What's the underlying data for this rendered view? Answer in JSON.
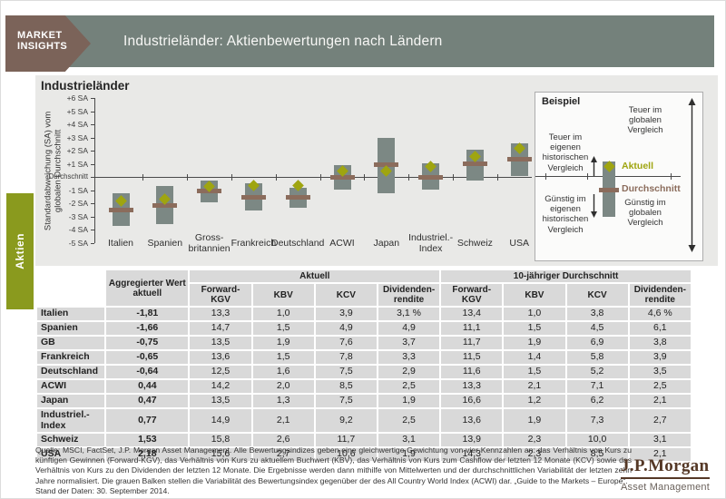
{
  "header": {
    "logo_line1": "MARKET",
    "logo_line2": "INSIGHTS",
    "title": "Industrieländer: Aktienbewertungen nach Ländern"
  },
  "sidebar": {
    "tab_label": "Aktien"
  },
  "chart_data": [
    {
      "type": "bar",
      "subtype": "floating-range-bars-with-markers",
      "title": "Industrieländer",
      "ylabel": "Standardabweichung (SA) vom\nglobalen Durchschnitt",
      "ylim": [
        -5,
        6
      ],
      "grid": false,
      "legend_position": "right (Beispiel box)",
      "y_ticks": [
        {
          "label": "+6 SA",
          "value": 6
        },
        {
          "label": "+5 SA",
          "value": 5
        },
        {
          "label": "+4 SA",
          "value": 4
        },
        {
          "label": "+3 SA",
          "value": 3
        },
        {
          "label": "+2 SA",
          "value": 2
        },
        {
          "label": "+1 SA",
          "value": 1
        },
        {
          "label": "Durchschnitt",
          "value": 0
        },
        {
          "label": "-1 SA",
          "value": -1
        },
        {
          "label": "-2 SA",
          "value": -2
        },
        {
          "label": "-3 SA",
          "value": -3
        },
        {
          "label": "-4 SA",
          "value": -4
        },
        {
          "label": "-5 SA",
          "value": -5
        }
      ],
      "categories": [
        "Italien",
        "Spanien",
        "Gross-\nbritannien",
        "Frankreich",
        "Deutschland",
        "ACWI",
        "Japan",
        "Industriel.-\nIndex",
        "Schweiz",
        "USA"
      ],
      "series": [
        {
          "name": "Variabilität (grauer Balken)",
          "type": "range",
          "values": [
            [
              -3.7,
              -1.25
            ],
            [
              -3.6,
              -0.7
            ],
            [
              -1.95,
              -0.25
            ],
            [
              -2.55,
              -0.5
            ],
            [
              -2.35,
              -0.85
            ],
            [
              -1.0,
              0.9
            ],
            [
              -1.25,
              3.0
            ],
            [
              -1.0,
              1.05
            ],
            [
              -0.3,
              2.1
            ],
            [
              0.1,
              2.55
            ]
          ]
        },
        {
          "name": "Durchschnitt",
          "type": "marker-line",
          "values": [
            -2.5,
            -2.15,
            -1.05,
            -1.55,
            -1.55,
            0.0,
            0.9,
            0.0,
            1.0,
            1.35
          ]
        },
        {
          "name": "Aktuell",
          "type": "marker-diamond",
          "values": [
            -1.81,
            -1.66,
            -0.75,
            -0.65,
            -0.64,
            0.44,
            0.47,
            0.77,
            1.53,
            2.18
          ]
        }
      ]
    },
    {
      "type": "table",
      "agg_header": "Aggregierter Wert\naktuell",
      "group_headers": [
        "Aktuell",
        "10-jähriger Durchschnitt"
      ],
      "sub_headers": [
        "Forward-KGV",
        "KBV",
        "KCV",
        "Dividenden-\nrendite",
        "Forward-KGV",
        "KBV",
        "KCV",
        "Dividenden-\nrendite"
      ],
      "rows": [
        {
          "name": "Italien",
          "agg": "-1,81",
          "values": [
            "13,3",
            "1,0",
            "3,9",
            "3,1 %",
            "13,4",
            "1,0",
            "3,8",
            "4,6 %"
          ]
        },
        {
          "name": "Spanien",
          "agg": "-1,66",
          "values": [
            "14,7",
            "1,5",
            "4,9",
            "4,9",
            "11,1",
            "1,5",
            "4,5",
            "6,1"
          ]
        },
        {
          "name": "GB",
          "agg": "-0,75",
          "values": [
            "13,5",
            "1,9",
            "7,6",
            "3,7",
            "11,7",
            "1,9",
            "6,9",
            "3,8"
          ]
        },
        {
          "name": "Frankreich",
          "agg": "-0,65",
          "values": [
            "13,6",
            "1,5",
            "7,8",
            "3,3",
            "11,5",
            "1,4",
            "5,8",
            "3,9"
          ]
        },
        {
          "name": "Deutschland",
          "agg": "-0,64",
          "values": [
            "12,5",
            "1,6",
            "7,5",
            "2,9",
            "11,6",
            "1,5",
            "5,2",
            "3,5"
          ]
        },
        {
          "name": "ACWI",
          "agg": "0,44",
          "values": [
            "14,2",
            "2,0",
            "8,5",
            "2,5",
            "13,3",
            "2,1",
            "7,1",
            "2,5"
          ]
        },
        {
          "name": "Japan",
          "agg": "0,47",
          "values": [
            "13,5",
            "1,3",
            "7,5",
            "1,9",
            "16,6",
            "1,2",
            "6,2",
            "2,1"
          ]
        },
        {
          "name": "Industriel.-\nIndex",
          "agg": "0,77",
          "values": [
            "14,9",
            "2,1",
            "9,2",
            "2,5",
            "13,6",
            "1,9",
            "7,3",
            "2,7"
          ]
        },
        {
          "name": "Schweiz",
          "agg": "1,53",
          "values": [
            "15,8",
            "2,6",
            "11,7",
            "3,1",
            "13,9",
            "2,3",
            "10,0",
            "3,1"
          ]
        },
        {
          "name": "USA",
          "agg": "2,18",
          "values": [
            "15,6",
            "2,7",
            "10,6",
            "1,9",
            "14,3",
            "2,3",
            "8,5",
            "2,1"
          ]
        }
      ]
    }
  ],
  "beispiel": {
    "title": "Beispiel",
    "aktuell": "Aktuell",
    "durchschnitt": "Durchschnitt",
    "teuer_eigen": "Teuer im\neigenen\nhistorischen\nVergleich",
    "guenstig_eigen": "Günstig im\neigenen\nhistorischen\nVergleich",
    "teuer_global": "Teuer im\nglobalen\nVergleich",
    "guenstig_global": "Günstig im\nglobalen\nVergleich"
  },
  "footer": {
    "source": "Quelle: MSCI, FactSet, J.P. Morgan Asset Management.  Alle Bewertungsindizes geben eine gleichwertige Gewichtung von vier Kennzahlen an: das Verhältnis von Kurs zu künftigen Gewinnen (Forward-KGV), das Verhältnis von Kurs zu aktuellem Buchwert (KBV), das Verhältnis von Kurs zum Cashflow der letzten 12 Monate (KCV) sowie das Verhältnis von Kurs zu den Dividenden der letzten 12 Monate.  Die Ergebnisse werden dann mithilfe von Mittelwerten und der durchschnittlichen Variabilität der letzten zehn Jahre normalisiert.  Die grauen Balken stellen die Variabilität des Bewertungsindex gegenüber der des All Country World Index (ACWI) dar. „Guide to the Markets – Europe“.",
    "date_note": "Stand der Daten: 30. September 2014.",
    "logo_word": "J.P.Morgan",
    "logo_sub": "Asset Management"
  },
  "colors": {
    "c-header": "#74817b",
    "c-pennant": "#7b6359",
    "c-panel": "#e9e9e7",
    "c-bar": "#7c8884",
    "c-avg": "#8b6c5c",
    "c-diamond": "#9fa510",
    "c-olive": "#8a9a1e",
    "c-cell": "#d9d9d9",
    "c-axis": "#4a4a4a",
    "c-jpm": "#553826"
  }
}
